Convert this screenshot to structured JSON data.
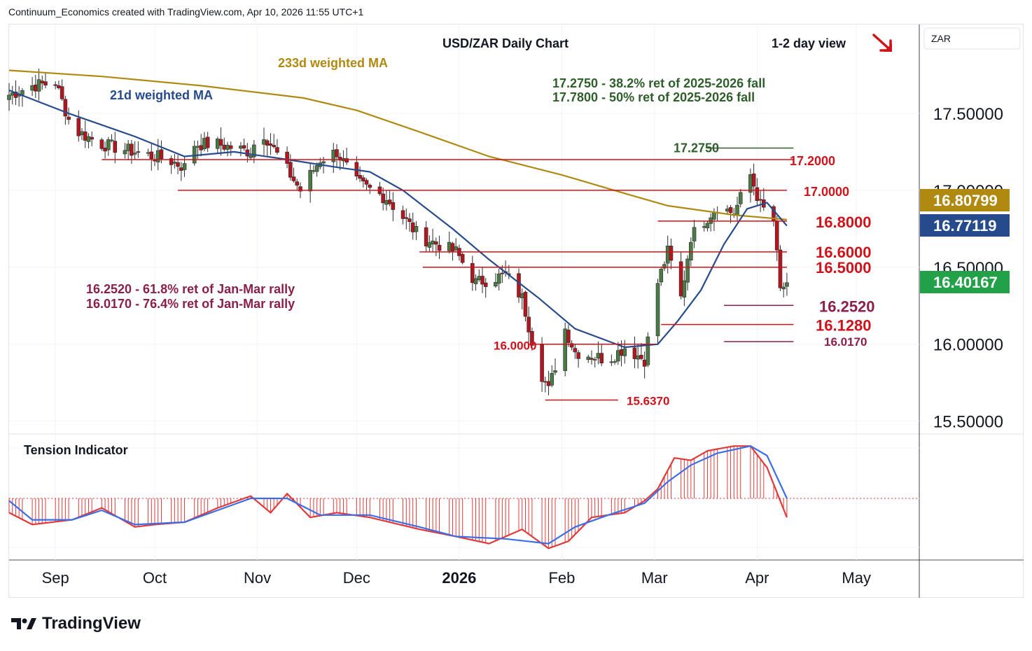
{
  "header": {
    "text": "Continuum_Economics created with TradingView.com, Apr 10, 2026 11:55 UTC+1"
  },
  "footer": {
    "brand": "TradingView"
  },
  "colors": {
    "up_candle": "#4a7a45",
    "down_candle": "#b2161e",
    "ma21": "#264b8c",
    "ma233": "#b08a10",
    "level_red": "#d0121a",
    "fib_maroon": "#8b1f4c",
    "fib_green": "#2e5e2a",
    "tension_hist": "#e03a3a",
    "tension_line": "#3a6ee8"
  },
  "chart_data": [
    {
      "type": "candlestick",
      "title": "USD/ZAR Daily Chart",
      "view": "1-2 day view",
      "view_icon": "red-arrow-down-right",
      "symbol": "ZAR",
      "ylim": [
        15.5,
        17.8
      ],
      "y_ticks": [
        "17.50000",
        "17.00000",
        "16.50000",
        "16.00000",
        "15.50000"
      ],
      "x_ticks": [
        "Sep",
        "Oct",
        "Nov",
        "Dec",
        "2026",
        "Feb",
        "Mar",
        "Apr",
        "May"
      ],
      "x_range": [
        "2025-08-18",
        "2026-05-20"
      ],
      "grid": true,
      "last_price": {
        "value": "16.40167",
        "color": "#22a148"
      },
      "ma_badges": [
        {
          "value": "16.80799",
          "color": "#b08a10"
        },
        {
          "value": "16.77119",
          "color": "#264b8c"
        }
      ],
      "ma_labels": [
        {
          "text": "21d weighted MA",
          "color": "#264b8c"
        },
        {
          "text": "233d weighted MA",
          "color": "#b08a10"
        }
      ],
      "levels": [
        {
          "label": "17.2750",
          "value": 17.275,
          "from": "2026-03-17",
          "to": "2026-04-12",
          "color": "#2e5e2a"
        },
        {
          "label": "17.2000",
          "value": 17.2,
          "from": "2025-09-15",
          "to": "2026-04-12",
          "color": "#d0121a"
        },
        {
          "label": "17.0000",
          "value": 17.0,
          "from": "2025-10-08",
          "to": "2026-04-10",
          "color": "#d0121a"
        },
        {
          "label": "16.8000",
          "value": 16.8,
          "from": "2026-03-02",
          "to": "2026-04-10",
          "color": "#d0121a"
        },
        {
          "label": "16.6000",
          "value": 16.6,
          "from": "2025-12-20",
          "to": "2026-04-10",
          "color": "#d0121a"
        },
        {
          "label": "16.5000",
          "value": 16.5,
          "from": "2025-12-21",
          "to": "2026-04-10",
          "color": "#d0121a"
        },
        {
          "label": "16.2520",
          "value": 16.252,
          "from": "2026-03-22",
          "to": "2026-04-12",
          "color": "#8b1f4c"
        },
        {
          "label": "16.1280",
          "value": 16.128,
          "from": "2026-03-03",
          "to": "2026-04-12",
          "color": "#d0121a"
        },
        {
          "label": "16.0170",
          "value": 16.017,
          "from": "2026-03-22",
          "to": "2026-04-12",
          "color": "#8b1f4c"
        },
        {
          "label": "16.0000",
          "value": 16.0,
          "from": "2026-01-22",
          "to": "2026-03-01",
          "color": "#d0121a"
        },
        {
          "label": "15.6370",
          "value": 15.637,
          "from": "2026-01-27",
          "to": "2026-02-18",
          "color": "#d0121a"
        }
      ],
      "annotations": [
        {
          "text": "17.2750 - 38.2% ret of 2025-2026 fall",
          "color": "#2e5e2a"
        },
        {
          "text": "17.7800 - 50% ret of 2025-2026 fall",
          "color": "#2e5e2a"
        },
        {
          "text": "16.2520 - 61.8% ret of Jan-Mar rally",
          "color": "#8b1f4c"
        },
        {
          "text": "16.0170 - 76.4% ret of Jan-Mar rally",
          "color": "#8b1f4c"
        }
      ],
      "series": [
        {
          "name": "USD/ZAR",
          "anchors": [
            [
              "2025-08-18",
              17.62
            ],
            [
              "2025-08-25",
              17.68
            ],
            [
              "2025-09-01",
              17.7
            ],
            [
              "2025-09-06",
              17.4
            ],
            [
              "2025-09-15",
              17.3
            ],
            [
              "2025-09-25",
              17.25
            ],
            [
              "2025-10-05",
              17.2
            ],
            [
              "2025-10-10",
              17.15
            ],
            [
              "2025-10-12",
              17.3
            ],
            [
              "2025-10-20",
              17.3
            ],
            [
              "2025-10-30",
              17.25
            ],
            [
              "2025-11-02",
              17.4
            ],
            [
              "2025-11-08",
              17.2
            ],
            [
              "2025-11-14",
              17.0
            ],
            [
              "2025-11-20",
              17.2
            ],
            [
              "2025-11-25",
              17.25
            ],
            [
              "2025-12-01",
              17.05
            ],
            [
              "2025-12-10",
              16.95
            ],
            [
              "2025-12-20",
              16.7
            ],
            [
              "2025-12-31",
              16.6
            ],
            [
              "2026-01-06",
              16.4
            ],
            [
              "2026-01-15",
              16.45
            ],
            [
              "2026-01-20",
              16.3
            ],
            [
              "2026-01-25",
              15.85
            ],
            [
              "2026-01-28",
              15.7
            ],
            [
              "2026-02-02",
              16.1
            ],
            [
              "2026-02-05",
              15.95
            ],
            [
              "2026-02-15",
              15.9
            ],
            [
              "2026-02-20",
              15.98
            ],
            [
              "2026-02-26",
              15.9
            ],
            [
              "2026-03-02",
              16.4
            ],
            [
              "2026-03-05",
              16.6
            ],
            [
              "2026-03-09",
              16.3
            ],
            [
              "2026-03-12",
              16.7
            ],
            [
              "2026-03-16",
              16.8
            ],
            [
              "2026-03-20",
              16.9
            ],
            [
              "2026-03-25",
              16.85
            ],
            [
              "2026-03-30",
              17.1
            ],
            [
              "2026-04-02",
              16.9
            ],
            [
              "2026-04-06",
              16.8
            ],
            [
              "2026-04-08",
              16.35
            ],
            [
              "2026-04-10",
              16.4
            ]
          ]
        },
        {
          "name": "21d weighted MA",
          "points": [
            [
              "2025-08-18",
              17.65
            ],
            [
              "2025-09-05",
              17.5
            ],
            [
              "2025-09-25",
              17.35
            ],
            [
              "2025-10-10",
              17.22
            ],
            [
              "2025-10-25",
              17.25
            ],
            [
              "2025-11-10",
              17.2
            ],
            [
              "2025-11-25",
              17.15
            ],
            [
              "2025-12-05",
              17.12
            ],
            [
              "2025-12-15",
              17.0
            ],
            [
              "2025-12-30",
              16.75
            ],
            [
              "2026-01-10",
              16.55
            ],
            [
              "2026-01-25",
              16.3
            ],
            [
              "2026-02-05",
              16.1
            ],
            [
              "2026-02-20",
              15.98
            ],
            [
              "2026-03-02",
              16.0
            ],
            [
              "2026-03-08",
              16.15
            ],
            [
              "2026-03-15",
              16.35
            ],
            [
              "2026-03-22",
              16.65
            ],
            [
              "2026-03-29",
              16.88
            ],
            [
              "2026-04-04",
              16.92
            ],
            [
              "2026-04-10",
              16.77
            ]
          ]
        },
        {
          "name": "233d weighted MA",
          "points": [
            [
              "2025-08-18",
              17.78
            ],
            [
              "2025-09-15",
              17.74
            ],
            [
              "2025-10-15",
              17.68
            ],
            [
              "2025-11-15",
              17.6
            ],
            [
              "2025-12-01",
              17.52
            ],
            [
              "2025-12-20",
              17.38
            ],
            [
              "2026-01-10",
              17.22
            ],
            [
              "2026-02-01",
              17.1
            ],
            [
              "2026-02-20",
              16.98
            ],
            [
              "2026-03-05",
              16.9
            ],
            [
              "2026-03-25",
              16.84
            ],
            [
              "2026-04-10",
              16.81
            ]
          ]
        }
      ]
    },
    {
      "type": "line",
      "title": "Tension Indicator",
      "series": [
        {
          "name": "",
          "points": [
            [
              "2025-08-18",
              -0.3
            ],
            [
              "2025-08-25",
              -0.55
            ],
            [
              "2025-09-06",
              -0.45
            ],
            [
              "2025-09-15",
              -0.2
            ],
            [
              "2025-09-25",
              -0.6
            ],
            [
              "2025-10-01",
              -0.55
            ],
            [
              "2025-10-10",
              -0.5
            ],
            [
              "2025-10-20",
              -0.2
            ],
            [
              "2025-10-30",
              0.05
            ],
            [
              "2025-11-05",
              -0.3
            ],
            [
              "2025-11-10",
              0.1
            ],
            [
              "2025-11-17",
              -0.4
            ],
            [
              "2025-11-25",
              -0.3
            ],
            [
              "2025-12-05",
              -0.4
            ],
            [
              "2025-12-20",
              -0.65
            ],
            [
              "2025-12-31",
              -0.8
            ],
            [
              "2026-01-10",
              -0.95
            ],
            [
              "2026-01-20",
              -0.65
            ],
            [
              "2026-01-28",
              -1.05
            ],
            [
              "2026-02-03",
              -0.9
            ],
            [
              "2026-02-10",
              -0.4
            ],
            [
              "2026-02-20",
              -0.3
            ],
            [
              "2026-02-26",
              -0.05
            ],
            [
              "2026-03-02",
              0.2
            ],
            [
              "2026-03-07",
              0.85
            ],
            [
              "2026-03-12",
              0.8
            ],
            [
              "2026-03-17",
              1.0
            ],
            [
              "2026-03-25",
              1.1
            ],
            [
              "2026-03-30",
              1.1
            ],
            [
              "2026-04-04",
              0.65
            ],
            [
              "2026-04-10",
              -0.4
            ]
          ]
        },
        {
          "name": "",
          "points": [
            [
              "2025-08-18",
              -0.05
            ],
            [
              "2025-08-25",
              -0.45
            ],
            [
              "2025-09-06",
              -0.45
            ],
            [
              "2025-09-15",
              -0.25
            ],
            [
              "2025-09-25",
              -0.55
            ],
            [
              "2025-10-10",
              -0.5
            ],
            [
              "2025-10-20",
              -0.25
            ],
            [
              "2025-10-30",
              0.0
            ],
            [
              "2025-11-10",
              0.0
            ],
            [
              "2025-11-20",
              -0.35
            ],
            [
              "2025-12-05",
              -0.35
            ],
            [
              "2025-12-20",
              -0.6
            ],
            [
              "2025-12-31",
              -0.8
            ],
            [
              "2026-01-15",
              -0.85
            ],
            [
              "2026-01-28",
              -0.95
            ],
            [
              "2026-02-05",
              -0.6
            ],
            [
              "2026-02-15",
              -0.35
            ],
            [
              "2026-02-26",
              -0.1
            ],
            [
              "2026-03-05",
              0.35
            ],
            [
              "2026-03-12",
              0.7
            ],
            [
              "2026-03-20",
              0.95
            ],
            [
              "2026-03-30",
              1.1
            ],
            [
              "2026-04-04",
              0.9
            ],
            [
              "2026-04-10",
              0.0
            ]
          ]
        }
      ]
    }
  ]
}
